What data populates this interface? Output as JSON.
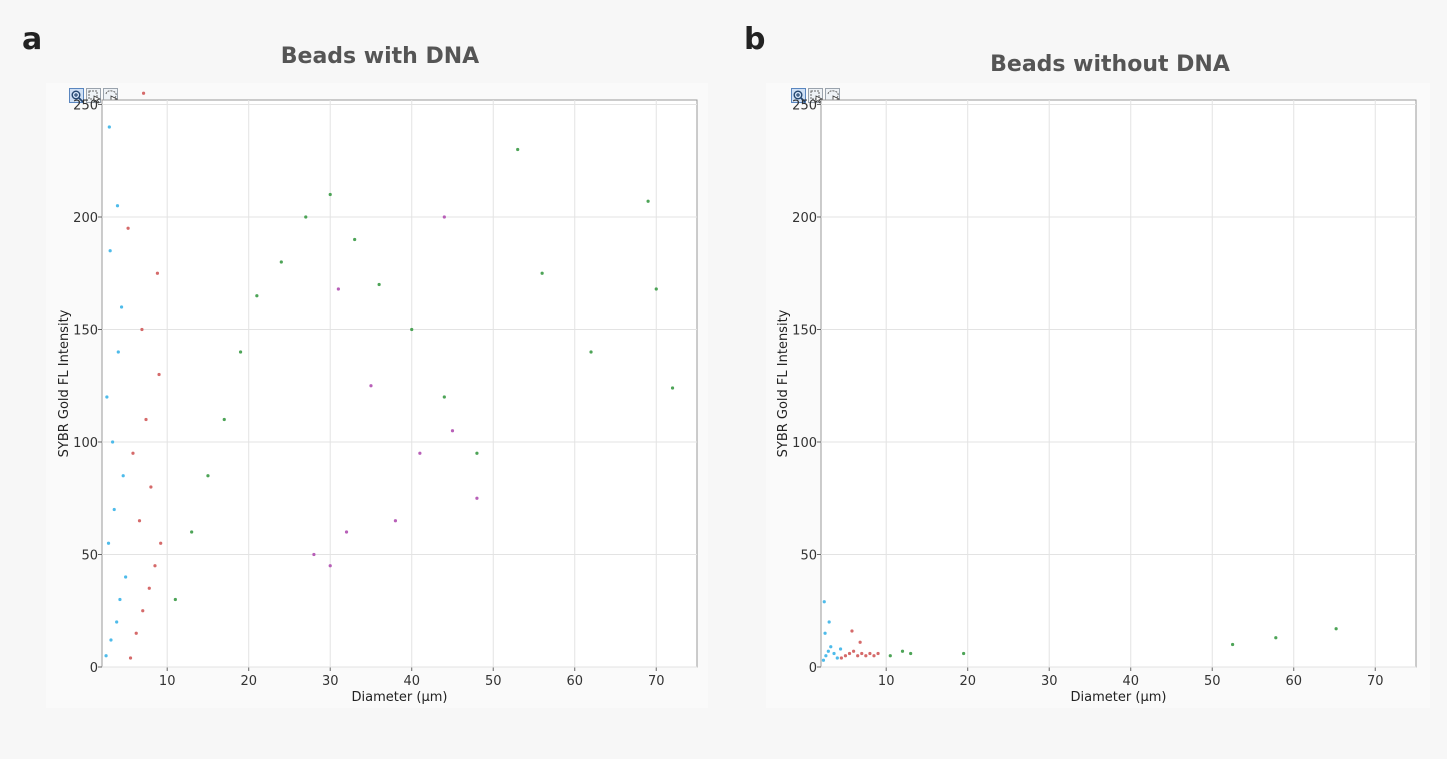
{
  "panel_a": {
    "letter": "a",
    "title": "Beads with DNA",
    "toolbar": [
      "zoom-in-icon",
      "select-icon",
      "lasso-select-icon"
    ]
  },
  "panel_b": {
    "letter": "b",
    "title": "Beads without DNA",
    "toolbar": [
      "zoom-in-icon",
      "select-icon",
      "lasso-select-icon"
    ]
  },
  "colors": {
    "small_beads": "#3bb4e8",
    "medium_beads": "#d05a5a",
    "large_beads": "#3a9a45",
    "other_beads": "#b04fb0"
  },
  "chart_data": [
    {
      "type": "scatter",
      "title": "Beads with DNA",
      "xlabel": "Diameter (µm)",
      "ylabel": "SYBR Gold FL Intensity",
      "xlim": [
        2,
        75
      ],
      "ylim": [
        0,
        252
      ],
      "xticks": [
        10,
        20,
        30,
        40,
        50,
        60,
        70
      ],
      "yticks": [
        0,
        50,
        100,
        150,
        200,
        250
      ],
      "grid": true,
      "series": [
        {
          "color": "#3bb4e8",
          "x": [
            2.5,
            3.1,
            3.8,
            4.2,
            4.9,
            2.8,
            3.5,
            4.6,
            3.3,
            2.6,
            4.0,
            4.4,
            3.0,
            3.9,
            2.9
          ],
          "y": [
            5,
            12,
            20,
            30,
            40,
            55,
            70,
            85,
            100,
            120,
            140,
            160,
            185,
            205,
            240
          ]
        },
        {
          "color": "#d05a5a",
          "x": [
            5.5,
            6.2,
            7.0,
            7.8,
            8.5,
            9.2,
            6.6,
            8.0,
            5.8,
            7.4,
            9.0,
            6.9,
            8.8,
            5.2,
            7.1
          ],
          "y": [
            4,
            15,
            25,
            35,
            45,
            55,
            65,
            80,
            95,
            110,
            130,
            150,
            175,
            195,
            255
          ]
        },
        {
          "color": "#3a9a45",
          "x": [
            11,
            13,
            15,
            17,
            19,
            21,
            24,
            27,
            30,
            33,
            36,
            40,
            44,
            48,
            53,
            56,
            62,
            69,
            70,
            72
          ],
          "y": [
            30,
            60,
            85,
            110,
            140,
            165,
            180,
            200,
            210,
            190,
            170,
            150,
            120,
            95,
            230,
            175,
            140,
            207,
            168,
            124
          ]
        },
        {
          "color": "#b04fb0",
          "x": [
            28,
            30,
            32,
            35,
            38,
            41,
            45,
            48,
            31,
            44
          ],
          "y": [
            50,
            45,
            60,
            125,
            65,
            95,
            105,
            75,
            168,
            200
          ]
        }
      ]
    },
    {
      "type": "scatter",
      "title": "Beads without DNA",
      "xlabel": "Diameter (µm)",
      "ylabel": "SYBR Gold FL Intensity",
      "xlim": [
        2,
        75
      ],
      "ylim": [
        0,
        252
      ],
      "xticks": [
        10,
        20,
        30,
        40,
        50,
        60,
        70
      ],
      "yticks": [
        0,
        50,
        100,
        150,
        200,
        250
      ],
      "grid": true,
      "series": [
        {
          "color": "#3bb4e8",
          "x": [
            2.3,
            2.6,
            2.9,
            3.2,
            3.6,
            4.0,
            4.4,
            2.5,
            3.0,
            2.4
          ],
          "y": [
            3,
            5,
            7,
            9,
            6,
            4,
            8,
            15,
            20,
            29
          ]
        },
        {
          "color": "#d05a5a",
          "x": [
            4.5,
            5.0,
            5.5,
            6.0,
            6.5,
            7.0,
            7.5,
            8.0,
            8.5,
            9.0,
            5.8,
            6.8
          ],
          "y": [
            4,
            5,
            6,
            7,
            5,
            6,
            5,
            6,
            5,
            6,
            16,
            11
          ]
        },
        {
          "color": "#3a9a45",
          "x": [
            10.5,
            12,
            13,
            19.5,
            52.5,
            57.8,
            65.2
          ],
          "y": [
            5,
            7,
            6,
            6,
            10,
            13,
            17
          ]
        }
      ]
    }
  ]
}
